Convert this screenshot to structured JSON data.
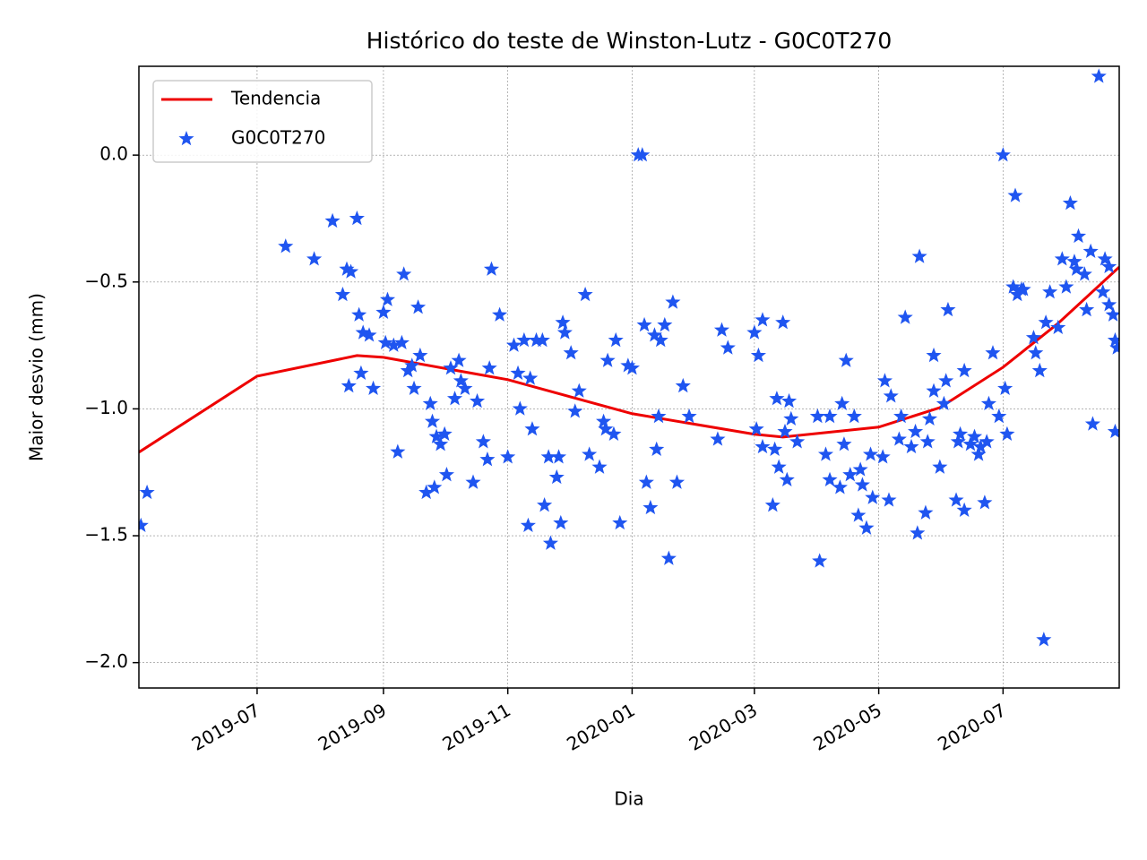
{
  "chart_data": {
    "type": "scatter",
    "title": "Histórico do teste de Winston-Lutz - G0C0T270",
    "x_label": "Dia",
    "y_label": "Maior desvio (mm)",
    "xlim": [
      "2019-05-04",
      "2020-08-27"
    ],
    "xticks": [
      {
        "value": "2019-07-01",
        "label": "2019-07"
      },
      {
        "value": "2019-09-01",
        "label": "2019-09"
      },
      {
        "value": "2019-11-01",
        "label": "2019-11"
      },
      {
        "value": "2020-01-01",
        "label": "2020-01"
      },
      {
        "value": "2020-03-01",
        "label": "2020-03"
      },
      {
        "value": "2020-05-01",
        "label": "2020-05"
      },
      {
        "value": "2020-07-01",
        "label": "2020-07"
      }
    ],
    "ylim": [
      -2.1,
      0.35
    ],
    "yticks": [
      {
        "value": -2,
        "label": "−2.0"
      },
      {
        "value": -1.5,
        "label": "−1.5"
      },
      {
        "value": -1,
        "label": "−1.0"
      },
      {
        "value": -0.5,
        "label": "−0.5"
      },
      {
        "value": 0,
        "label": "0.0"
      }
    ],
    "grid": true,
    "legend": "upper left",
    "series": [
      {
        "name": "Tendencia",
        "type": "line",
        "color": "#ee0000",
        "x": [
          "2019-05-04",
          "2019-07-01",
          "2019-08-19",
          "2019-09-01",
          "2019-11-01",
          "2020-01-01",
          "2020-03-01",
          "2020-03-15",
          "2020-05-01",
          "2020-05-31",
          "2020-07-01",
          "2020-07-28",
          "2020-08-27"
        ],
        "values": [
          -1.171,
          -0.871,
          -0.79,
          -0.797,
          -0.885,
          -1.019,
          -1.1,
          -1.111,
          -1.072,
          -0.995,
          -0.836,
          -0.663,
          -0.441
        ]
      },
      {
        "name": "G0C0T270",
        "type": "scatter",
        "color": "#1f55f0",
        "x": [
          "2019-05-05",
          "2019-05-08",
          "2019-07-15",
          "2019-07-29",
          "2019-08-07",
          "2019-08-12",
          "2019-08-14",
          "2019-08-16",
          "2019-08-15",
          "2019-08-19",
          "2019-08-20",
          "2019-08-21",
          "2019-08-22",
          "2019-08-25",
          "2019-08-27",
          "2019-09-01",
          "2019-09-03",
          "2019-09-02",
          "2019-09-06",
          "2019-09-08",
          "2019-09-10",
          "2019-09-11",
          "2019-09-13",
          "2019-09-15",
          "2019-09-16",
          "2019-09-18",
          "2019-09-19",
          "2019-09-22",
          "2019-09-24",
          "2019-09-25",
          "2019-09-26",
          "2019-09-27",
          "2019-09-29",
          "2019-10-01",
          "2019-10-02",
          "2019-10-04",
          "2019-10-06",
          "2019-10-08",
          "2019-10-09",
          "2019-10-11",
          "2019-10-15",
          "2019-10-17",
          "2019-10-20",
          "2019-10-22",
          "2019-10-23",
          "2019-10-24",
          "2019-10-28",
          "2019-11-01",
          "2019-11-04",
          "2019-11-06",
          "2019-11-07",
          "2019-11-09",
          "2019-11-11",
          "2019-11-12",
          "2019-11-13",
          "2019-11-15",
          "2019-11-18",
          "2019-11-19",
          "2019-11-21",
          "2019-11-22",
          "2019-11-25",
          "2019-11-26",
          "2019-11-27",
          "2019-11-28",
          "2019-11-29",
          "2019-12-02",
          "2019-12-04",
          "2019-12-06",
          "2019-12-09",
          "2019-12-11",
          "2019-12-16",
          "2019-12-18",
          "2019-12-19",
          "2019-12-20",
          "2019-12-23",
          "2019-12-24",
          "2019-12-26",
          "2019-12-30",
          "2020-01-01",
          "2020-01-04",
          "2020-01-06",
          "2020-01-07",
          "2020-01-08",
          "2020-01-10",
          "2020-01-12",
          "2020-01-13",
          "2020-01-14",
          "2020-01-15",
          "2020-01-17",
          "2020-01-19",
          "2020-01-21",
          "2020-01-23",
          "2020-01-26",
          "2020-01-29",
          "2020-02-12",
          "2020-02-14",
          "2020-02-17",
          "2020-03-01",
          "2020-03-03",
          "2020-03-05",
          "2020-03-02",
          "2020-03-05",
          "2020-03-10",
          "2020-03-11",
          "2020-03-12",
          "2020-03-13",
          "2020-03-15",
          "2020-03-16",
          "2020-03-17",
          "2020-03-18",
          "2020-03-19",
          "2020-03-22",
          "2020-04-01",
          "2020-04-02",
          "2020-04-05",
          "2020-04-07",
          "2020-04-07",
          "2020-04-12",
          "2020-04-13",
          "2020-04-14",
          "2020-04-15",
          "2020-04-17",
          "2020-04-19",
          "2020-04-21",
          "2020-04-22",
          "2020-04-23",
          "2020-04-25",
          "2020-04-27",
          "2020-04-28",
          "2020-05-03",
          "2020-05-04",
          "2020-05-06",
          "2020-05-07",
          "2020-05-11",
          "2020-05-12",
          "2020-05-14",
          "2020-05-17",
          "2020-05-19",
          "2020-05-20",
          "2020-05-21",
          "2020-05-24",
          "2020-05-25",
          "2020-05-26",
          "2020-05-28",
          "2020-05-28",
          "2020-05-31",
          "2020-06-02",
          "2020-06-03",
          "2020-06-04",
          "2020-06-08",
          "2020-06-09",
          "2020-06-10",
          "2020-06-12",
          "2020-06-12",
          "2020-06-15",
          "2020-06-17",
          "2020-06-19",
          "2020-06-20",
          "2020-06-22",
          "2020-06-23",
          "2020-06-24",
          "2020-06-26",
          "2020-06-29",
          "2020-07-01",
          "2020-07-02",
          "2020-07-03",
          "2020-07-06",
          "2020-07-07",
          "2020-07-08",
          "2020-07-10",
          "2020-07-11",
          "2020-07-16",
          "2020-07-17",
          "2020-07-19",
          "2020-07-21",
          "2020-07-22",
          "2020-07-24",
          "2020-07-28",
          "2020-07-30",
          "2020-08-01",
          "2020-08-03",
          "2020-08-05",
          "2020-08-06",
          "2020-08-07",
          "2020-08-10",
          "2020-08-11",
          "2020-08-13",
          "2020-08-14",
          "2020-08-17",
          "2020-08-19",
          "2020-08-20",
          "2020-08-22",
          "2020-08-22",
          "2020-08-24",
          "2020-08-25",
          "2020-08-26",
          "2020-08-25"
        ],
        "values": [
          -1.46,
          -1.33,
          -0.36,
          -0.41,
          -0.26,
          -0.55,
          -0.45,
          -0.46,
          -0.91,
          -0.25,
          -0.63,
          -0.86,
          -0.7,
          -0.71,
          -0.92,
          -0.62,
          -0.57,
          -0.74,
          -0.75,
          -1.17,
          -0.74,
          -0.47,
          -0.85,
          -0.83,
          -0.92,
          -0.6,
          -0.79,
          -1.33,
          -0.98,
          -1.05,
          -1.31,
          -1.11,
          -1.14,
          -1.1,
          -1.26,
          -0.84,
          -0.96,
          -0.81,
          -0.89,
          -0.92,
          -1.29,
          -0.97,
          -1.13,
          -1.2,
          -0.84,
          -0.45,
          -0.63,
          -1.19,
          -0.75,
          -0.86,
          -1,
          -0.73,
          -1.46,
          -0.88,
          -1.08,
          -0.73,
          -0.73,
          -1.38,
          -1.19,
          -1.53,
          -1.27,
          -1.19,
          -1.45,
          -0.66,
          -0.7,
          -0.78,
          -1.01,
          -0.93,
          -0.55,
          -1.18,
          -1.23,
          -1.05,
          -1.08,
          -0.81,
          -1.1,
          -0.73,
          -1.45,
          -0.83,
          -0.84,
          0,
          0,
          -0.67,
          -1.29,
          -1.39,
          -0.71,
          -1.16,
          -1.03,
          -0.73,
          -0.67,
          -1.59,
          -0.58,
          -1.29,
          -0.91,
          -1.03,
          -1.12,
          -0.69,
          -0.76,
          -0.7,
          -0.79,
          -0.65,
          -1.08,
          -1.15,
          -1.38,
          -1.16,
          -0.96,
          -1.23,
          -0.66,
          -1.09,
          -1.28,
          -0.97,
          -1.04,
          -1.13,
          -1.03,
          -1.6,
          -1.18,
          -1.28,
          -1.03,
          -1.31,
          -0.98,
          -1.14,
          -0.81,
          -1.26,
          -1.03,
          -1.42,
          -1.24,
          -1.3,
          -1.47,
          -1.18,
          -1.35,
          -1.19,
          -0.89,
          -1.36,
          -0.95,
          -1.12,
          -1.03,
          -0.64,
          -1.15,
          -1.09,
          -1.49,
          -0.4,
          -1.41,
          -1.13,
          -1.04,
          -0.93,
          -0.79,
          -1.23,
          -0.98,
          -0.89,
          -0.61,
          -1.36,
          -1.13,
          -1.1,
          -0.85,
          -1.4,
          -1.14,
          -1.11,
          -1.18,
          -1.15,
          -1.37,
          -1.13,
          -0.98,
          -0.78,
          -1.03,
          0,
          -0.92,
          -1.1,
          -0.52,
          -0.16,
          -0.55,
          -0.53,
          -0.53,
          -0.72,
          -0.78,
          -0.85,
          -1.91,
          -0.66,
          -0.54,
          -0.68,
          -0.41,
          -0.52,
          -0.19,
          -0.42,
          -0.45,
          -0.32,
          -0.47,
          -0.61,
          -0.38,
          -1.06,
          0.31,
          -0.54,
          -0.41,
          -0.59,
          -0.44,
          -0.63,
          -0.73,
          -0.76,
          -1.09
        ]
      }
    ]
  }
}
